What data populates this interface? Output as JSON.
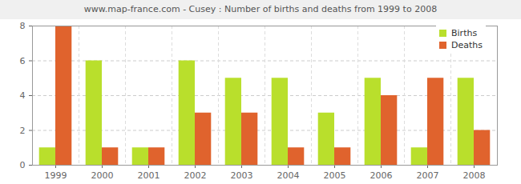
{
  "chart_data": {
    "type": "bar",
    "title": "www.map-france.com - Cusey : Number of births and deaths from 1999 to 2008",
    "categories": [
      "1999",
      "2000",
      "2001",
      "2002",
      "2003",
      "2004",
      "2005",
      "2006",
      "2007",
      "2008"
    ],
    "series": [
      {
        "name": "Births",
        "color": "#b9df2c",
        "values": [
          1,
          6,
          1,
          6,
          5,
          5,
          3,
          5,
          1,
          5
        ]
      },
      {
        "name": "Deaths",
        "color": "#e0632d",
        "values": [
          8,
          1,
          1,
          3,
          3,
          1,
          1,
          4,
          5,
          2
        ]
      }
    ],
    "ylim": [
      0,
      8
    ],
    "yticks": [
      0,
      2,
      4,
      6,
      8
    ],
    "grid": true,
    "legend": "top-right"
  }
}
